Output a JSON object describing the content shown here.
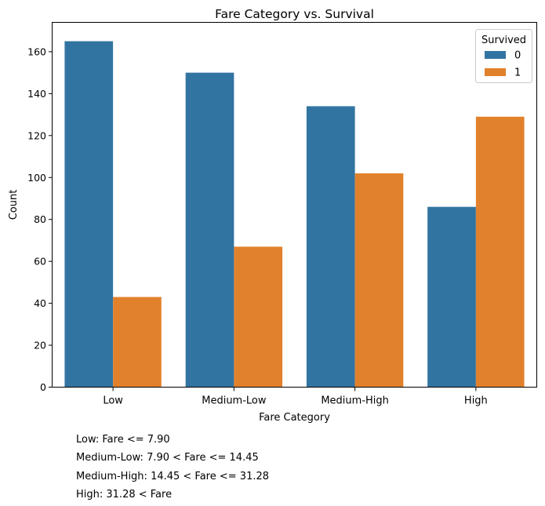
{
  "chart_data": {
    "type": "bar",
    "title": "Fare Category vs. Survival",
    "xlabel": "Fare Category",
    "ylabel": "Count",
    "categories": [
      "Low",
      "Medium-Low",
      "Medium-High",
      "High"
    ],
    "series": [
      {
        "name": "0",
        "values": [
          165,
          150,
          134,
          86
        ],
        "color": "#3274a1"
      },
      {
        "name": "1",
        "values": [
          43,
          67,
          102,
          129
        ],
        "color": "#e1812c"
      }
    ],
    "ylim": [
      0,
      174
    ],
    "yticks": [
      0,
      20,
      40,
      60,
      80,
      100,
      120,
      140,
      160
    ],
    "legend": {
      "title": "Survived",
      "position": "top-right"
    },
    "grid": false
  },
  "notes": [
    "Low: Fare <= 7.90",
    "Medium-Low: 7.90 < Fare <= 14.45",
    "Medium-High: 14.45 < Fare <= 31.28",
    "High: 31.28 < Fare"
  ]
}
